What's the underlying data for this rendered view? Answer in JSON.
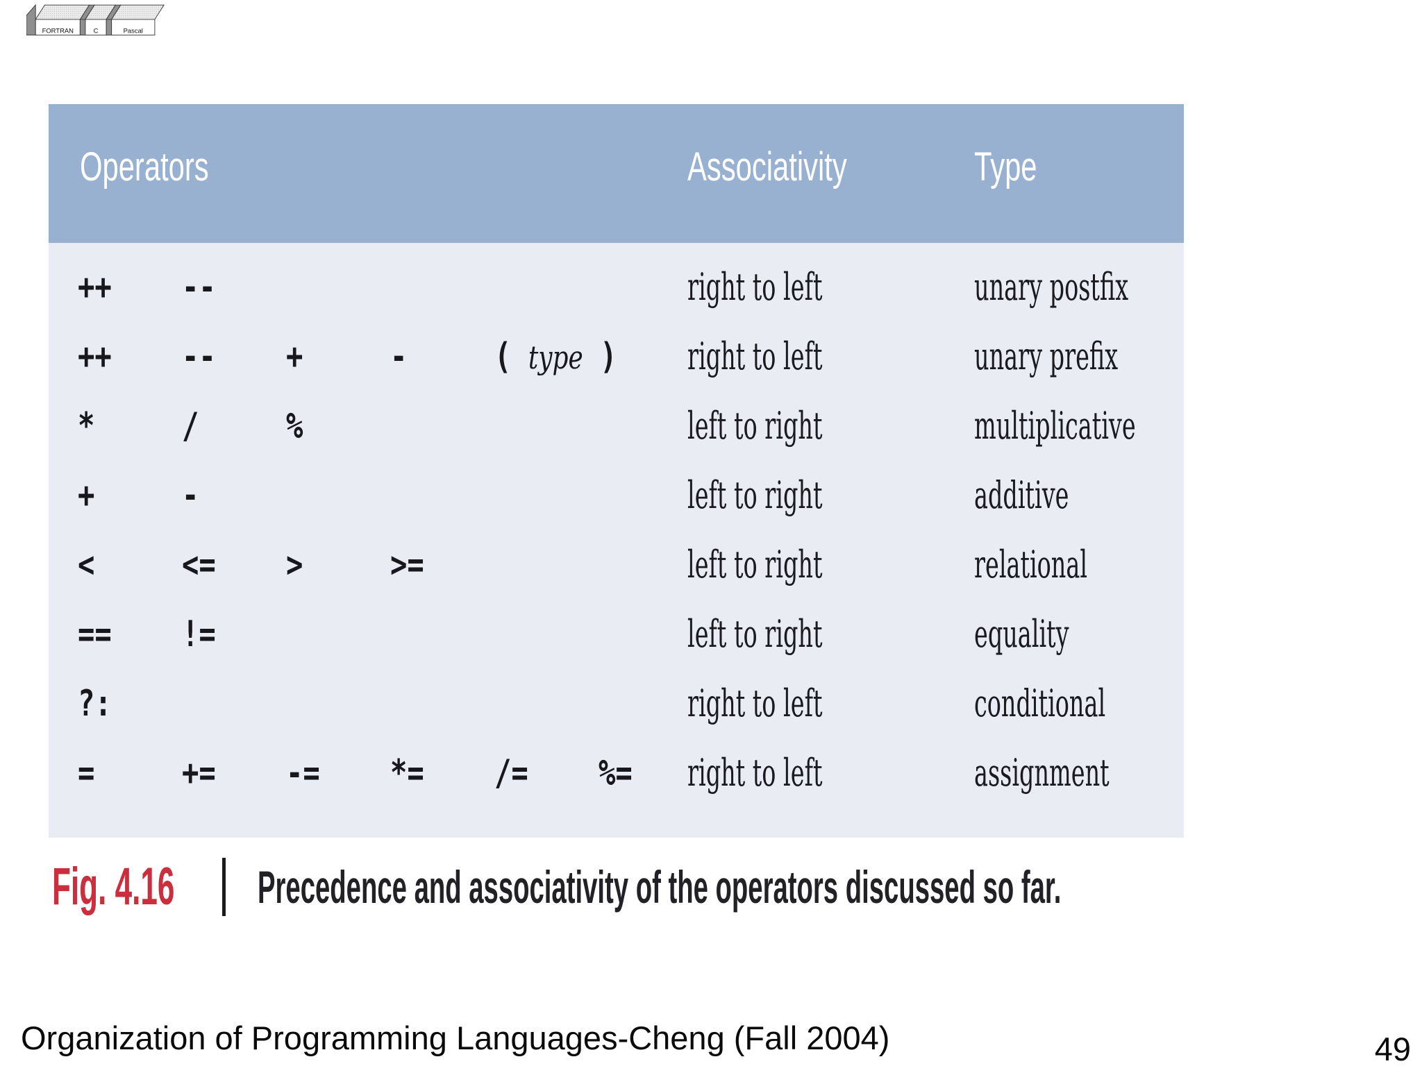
{
  "logo": {
    "books": [
      "FORTRAN",
      "C",
      "Pascal"
    ]
  },
  "table": {
    "headers": [
      "Operators",
      "Associativity",
      "Type"
    ],
    "rows": [
      {
        "operators": [
          "++",
          "--"
        ],
        "associativity": "right to left",
        "type": "unary postfix"
      },
      {
        "operators": [
          "++",
          "--",
          "+",
          "-",
          "( type )"
        ],
        "associativity": "right to left",
        "type": "unary prefix"
      },
      {
        "operators": [
          "*",
          "/",
          "%"
        ],
        "associativity": "left to right",
        "type": "multiplicative"
      },
      {
        "operators": [
          "+",
          "-"
        ],
        "associativity": "left to right",
        "type": "additive"
      },
      {
        "operators": [
          "<",
          "<=",
          ">",
          ">="
        ],
        "associativity": "left to right",
        "type": "relational"
      },
      {
        "operators": [
          "==",
          "!="
        ],
        "associativity": "left to right",
        "type": "equality"
      },
      {
        "operators": [
          "?:"
        ],
        "associativity": "right to left",
        "type": "conditional"
      },
      {
        "operators": [
          "=",
          "+=",
          "-=",
          "*=",
          "/=",
          "%="
        ],
        "associativity": "right to left",
        "type": "assignment"
      }
    ]
  },
  "caption": {
    "figure_label": "Fig. 4.16",
    "text": "Precedence and associativity of the operators discussed so far."
  },
  "footer": {
    "course": "Organization of Programming Languages-Cheng (Fall 2004)",
    "page_number": "49"
  },
  "colors": {
    "header_bg": "#98b1d1",
    "body_bg": "#e9ecf3",
    "figure_label_red": "#cb2f3d",
    "text_dark": "#1a1a1f"
  }
}
